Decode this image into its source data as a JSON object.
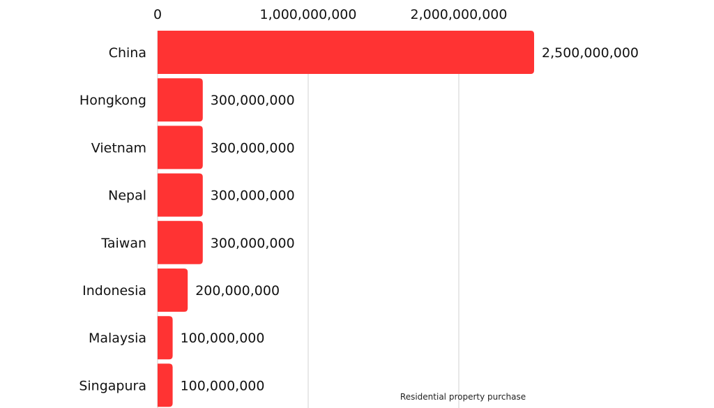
{
  "chart_data": {
    "type": "bar",
    "orientation": "horizontal",
    "categories": [
      "China",
      "Hongkong",
      "Vietnam",
      "Nepal",
      "Taiwan",
      "Indonesia",
      "Malaysia",
      "Singapura"
    ],
    "values": [
      2500000000,
      300000000,
      300000000,
      300000000,
      300000000,
      200000000,
      100000000,
      100000000
    ],
    "data_labels": [
      "2,500,000,000",
      "300,000,000",
      "300,000,000",
      "300,000,000",
      "300,000,000",
      "200,000,000",
      "100,000,000",
      "100,000,000"
    ],
    "x_ticks": [
      0,
      1000000000,
      2000000000
    ],
    "x_tick_labels": [
      "0",
      "1,000,000,000",
      "2,000,000,000"
    ],
    "xlim": [
      0,
      2500000000
    ],
    "x_axis_position": "top",
    "grid": true,
    "annotation": "Residential property purchase",
    "colors": {
      "bar": "#ff3333",
      "grid": "#d0d0d0"
    }
  }
}
